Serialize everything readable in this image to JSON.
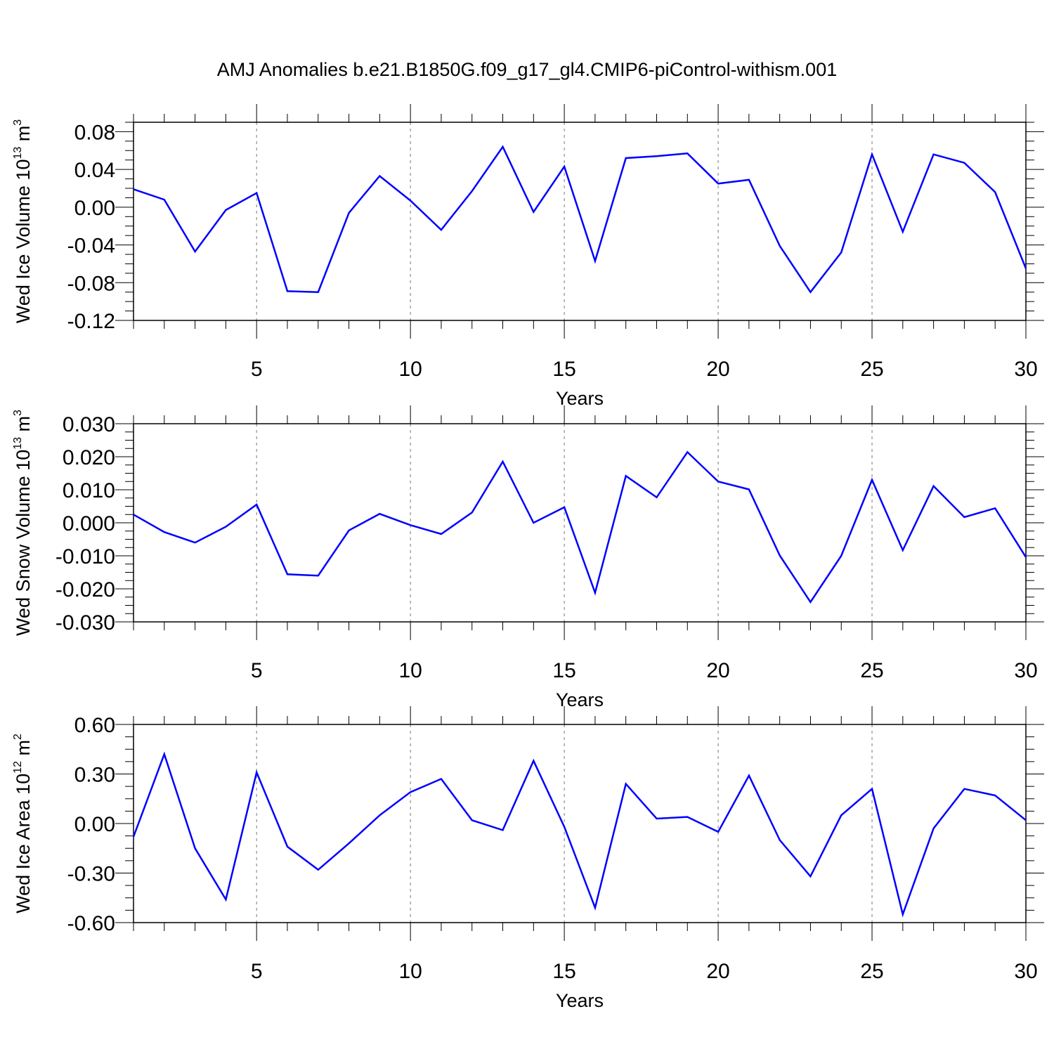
{
  "title": "AMJ Anomalies b.e21.B1850G.f09_g17_gl4.CMIP6-piControl-withism.001",
  "chart_data": [
    {
      "type": "line",
      "xlabel": "Years",
      "ylabel": "Wed Ice Volume 10",
      "ylabel_sup": "13",
      "ylabel_unit": " m",
      "ylabel_unit_sup": "3",
      "xlim": [
        1,
        30
      ],
      "ylim": [
        -0.12,
        0.09
      ],
      "xticks": [
        5,
        10,
        15,
        20,
        25,
        30
      ],
      "yticks": [
        -0.12,
        -0.08,
        -0.04,
        0.0,
        0.04,
        0.08
      ],
      "ytick_labels": [
        "-0.12",
        "-0.08",
        "-0.04",
        "0.00",
        "0.04",
        "0.08"
      ],
      "grid_x": [
        5,
        10,
        15,
        20,
        25
      ],
      "color": "#0000ff",
      "x": [
        1,
        2,
        3,
        4,
        5,
        6,
        7,
        8,
        9,
        10,
        11,
        12,
        13,
        14,
        15,
        16,
        17,
        18,
        19,
        20,
        21,
        22,
        23,
        24,
        25,
        26,
        27,
        28,
        29,
        30
      ],
      "y": [
        0.019,
        0.008,
        -0.047,
        -0.003,
        0.015,
        -0.089,
        -0.09,
        -0.006,
        0.033,
        0.007,
        -0.024,
        0.017,
        0.064,
        -0.005,
        0.043,
        -0.057,
        0.052,
        0.054,
        0.057,
        0.025,
        0.029,
        -0.041,
        -0.09,
        -0.048,
        0.056,
        -0.026,
        0.056,
        0.047,
        0.016,
        -0.065
      ]
    },
    {
      "type": "line",
      "xlabel": "Years",
      "ylabel": "Wed Snow Volume 10",
      "ylabel_sup": "13",
      "ylabel_unit": " m",
      "ylabel_unit_sup": "3",
      "xlim": [
        1,
        30
      ],
      "ylim": [
        -0.03,
        0.03
      ],
      "xticks": [
        5,
        10,
        15,
        20,
        25,
        30
      ],
      "yticks": [
        -0.03,
        -0.02,
        -0.01,
        0.0,
        0.01,
        0.02,
        0.03
      ],
      "ytick_labels": [
        "-0.030",
        "-0.020",
        "-0.010",
        "0.000",
        "0.010",
        "0.020",
        "0.030"
      ],
      "grid_x": [
        5,
        10,
        15,
        20,
        25
      ],
      "color": "#0000ff",
      "x": [
        1,
        2,
        3,
        4,
        5,
        6,
        7,
        8,
        9,
        10,
        11,
        12,
        13,
        14,
        15,
        16,
        17,
        18,
        19,
        20,
        21,
        22,
        23,
        24,
        25,
        26,
        27,
        28,
        29,
        30
      ],
      "y": [
        0.0025,
        -0.0028,
        -0.006,
        -0.0012,
        0.0055,
        -0.0156,
        -0.016,
        -0.0023,
        0.0027,
        -0.0007,
        -0.0034,
        0.0031,
        0.0185,
        0.0,
        0.0047,
        -0.0212,
        0.0142,
        0.0077,
        0.0214,
        0.0125,
        0.0101,
        -0.0099,
        -0.024,
        -0.01,
        0.013,
        -0.0083,
        0.0111,
        0.0017,
        0.0044,
        -0.0104
      ]
    },
    {
      "type": "line",
      "xlabel": "Years",
      "ylabel": "Wed Ice Area 10",
      "ylabel_sup": "12",
      "ylabel_unit": " m",
      "ylabel_unit_sup": "2",
      "xlim": [
        1,
        30
      ],
      "ylim": [
        -0.6,
        0.6
      ],
      "xticks": [
        5,
        10,
        15,
        20,
        25,
        30
      ],
      "yticks": [
        -0.6,
        -0.3,
        0.0,
        0.3,
        0.6
      ],
      "ytick_labels": [
        "-0.60",
        "-0.30",
        "0.00",
        "0.30",
        "0.60"
      ],
      "grid_x": [
        5,
        10,
        15,
        20,
        25
      ],
      "color": "#0000ff",
      "x": [
        1,
        2,
        3,
        4,
        5,
        6,
        7,
        8,
        9,
        10,
        11,
        12,
        13,
        14,
        15,
        16,
        17,
        18,
        19,
        20,
        21,
        22,
        23,
        24,
        25,
        26,
        27,
        28,
        29,
        30
      ],
      "y": [
        -0.08,
        0.42,
        -0.15,
        -0.46,
        0.31,
        -0.14,
        -0.28,
        -0.12,
        0.05,
        0.19,
        0.27,
        0.02,
        -0.04,
        0.38,
        -0.02,
        -0.51,
        0.24,
        0.03,
        0.04,
        -0.05,
        0.29,
        -0.1,
        -0.32,
        0.05,
        0.21,
        -0.55,
        -0.03,
        0.21,
        0.17,
        0.02
      ]
    }
  ]
}
